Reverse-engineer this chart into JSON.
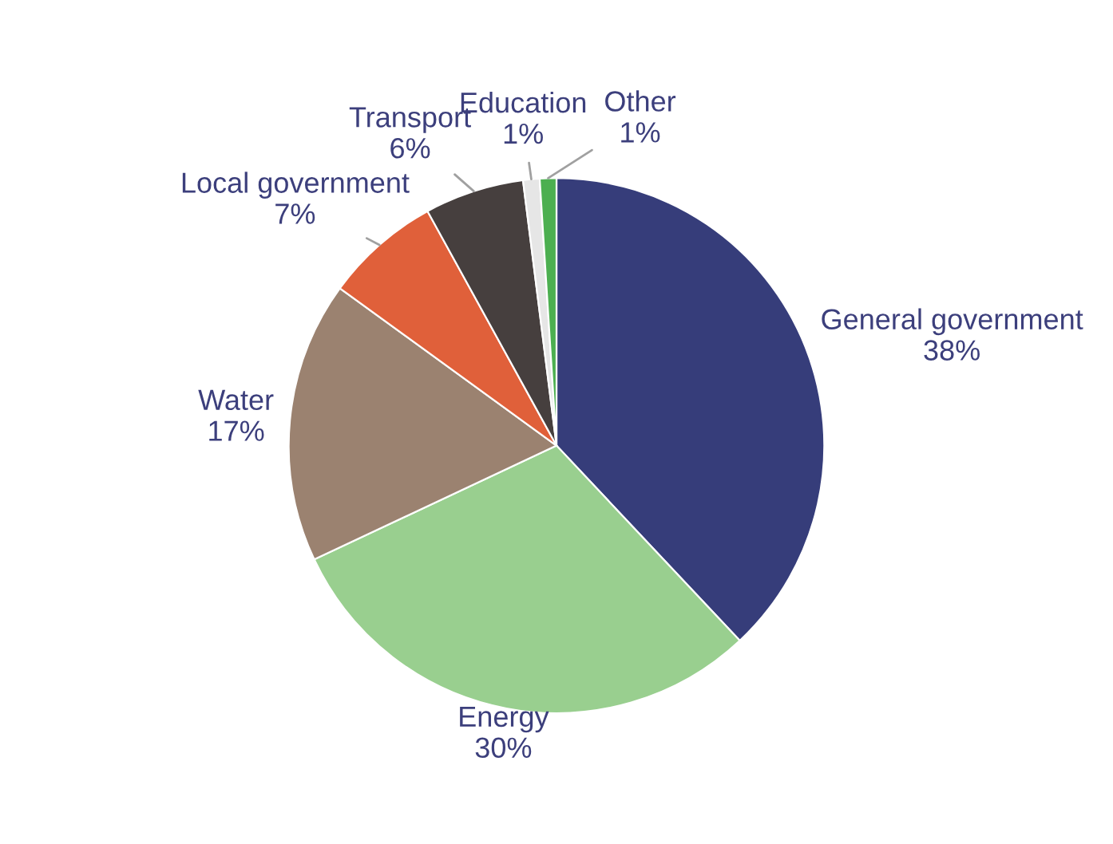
{
  "chart_data": {
    "type": "pie",
    "categories": [
      "General government",
      "Energy",
      "Water",
      "Local government",
      "Transport",
      "Education",
      "Other"
    ],
    "values": [
      38,
      30,
      17,
      7,
      6,
      1,
      1
    ],
    "colors": [
      "#363d7a",
      "#99cf8f",
      "#9b8270",
      "#e0603a",
      "#463f3e",
      "#e6e6e6",
      "#4caf50"
    ],
    "value_labels": [
      "38%",
      "30%",
      "17%",
      "7%",
      "6%",
      "1%",
      "1%"
    ],
    "legend": false
  }
}
